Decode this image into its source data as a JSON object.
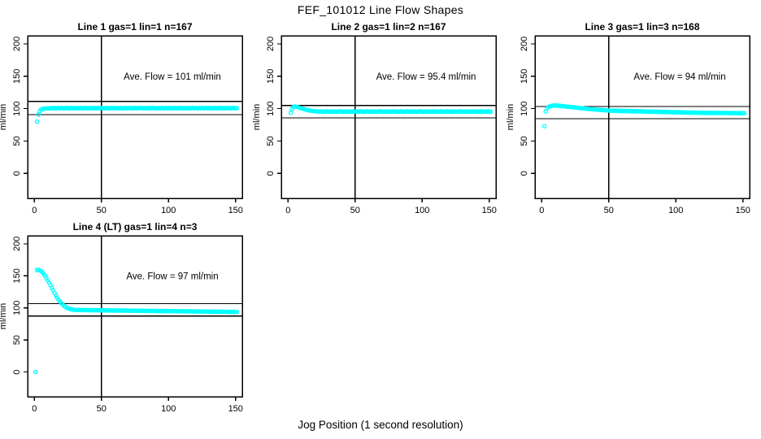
{
  "figure": {
    "title": "FEF_101012  Line Flow Shapes",
    "x_axis_label": "Jog Position (1 second resolution)",
    "y_axis_label": "ml/min",
    "point_color": "#00FFFF",
    "line_color": "#000000",
    "background_color": "#FFFFFF"
  },
  "chart_data": [
    {
      "type": "scatter",
      "title": "Line 1 gas=1 lin=1 n=167",
      "n": 167,
      "ave_flow": 101,
      "ave_flow_label": "Ave. Flow =  101  ml/min",
      "xlabel": "Jog Position (1 second resolution)",
      "ylabel": "ml/min",
      "xlim": [
        -5,
        155
      ],
      "ylim": [
        -38.5,
        212.5
      ],
      "x_ticks": [
        0,
        50,
        100,
        150
      ],
      "y_ticks": [
        0,
        50,
        100,
        150,
        200
      ],
      "vline_x": 50,
      "hlines": [
        111.1,
        90.9
      ],
      "grid": false,
      "legend": "none",
      "x_start": 2,
      "x_step": 1,
      "y": [
        80,
        91,
        96,
        98.5,
        99.5,
        100,
        100.2,
        100.4,
        100.5,
        100.6,
        100.4,
        100.9,
        100.6,
        101.1,
        100.3,
        100.8,
        101.0,
        100.5,
        100.9,
        100.7,
        100.4,
        100.9,
        100.6,
        101.1,
        100.3,
        100.8,
        101.0,
        100.5,
        100.9,
        100.7,
        100.4,
        100.9,
        100.6,
        101.1,
        100.3,
        100.8,
        101.0,
        100.5,
        100.9,
        100.7,
        100.4,
        100.9,
        100.6,
        101.1,
        100.3,
        100.8,
        101.0,
        100.5,
        100.9,
        100.7,
        100.4,
        100.9,
        100.6,
        101.1,
        100.3,
        100.8,
        101.0,
        100.5,
        100.9,
        100.7,
        100.4,
        100.9,
        100.6,
        101.1,
        100.3,
        100.8,
        101.0,
        100.5,
        100.9,
        100.7,
        100.4,
        100.9,
        100.6,
        101.1,
        100.3,
        100.8,
        101.0,
        100.5,
        100.9,
        100.7,
        100.4,
        100.9,
        100.6,
        101.1,
        100.3,
        100.8,
        101.0,
        100.5,
        100.9,
        100.7,
        100.4,
        100.9,
        100.6,
        101.1,
        100.3,
        100.8,
        101.0,
        100.5,
        100.9,
        100.7,
        100.4,
        100.9,
        100.6,
        101.1,
        100.3,
        100.8,
        101.0,
        100.5,
        100.9,
        100.7,
        100.4,
        100.9,
        100.6,
        101.1,
        100.3,
        100.8,
        101.0,
        100.5,
        100.9,
        100.7,
        100.4,
        100.9,
        100.6,
        101.1,
        100.3,
        100.8,
        101.0,
        100.5,
        100.9,
        100.7,
        100.4,
        100.9,
        100.6,
        101.1,
        100.3,
        100.8,
        101.0,
        100.5,
        100.9,
        100.7,
        100.4,
        100.9,
        100.6,
        101.1,
        100.3,
        100.8,
        101.0,
        100.5,
        100.9,
        100.7
      ]
    },
    {
      "type": "scatter",
      "title": "Line 2 gas=1 lin=2 n=167",
      "n": 167,
      "ave_flow": 95.4,
      "ave_flow_label": "Ave. Flow =  95.4  ml/min",
      "xlabel": "Jog Position (1 second resolution)",
      "ylabel": "ml/min",
      "xlim": [
        -5,
        155
      ],
      "ylim": [
        -38.5,
        212.5
      ],
      "x_ticks": [
        0,
        50,
        100,
        150
      ],
      "y_ticks": [
        0,
        50,
        100,
        150,
        200
      ],
      "vline_x": 50,
      "hlines": [
        104.9,
        85.9
      ],
      "grid": false,
      "legend": "none",
      "x_start": 2,
      "x_step": 1,
      "y": [
        93.5,
        99.5,
        102.5,
        103.3,
        103.1,
        102.5,
        101.8,
        101.1,
        100.4,
        99.8,
        99.2,
        98.6,
        98.1,
        97.6,
        97.2,
        96.8,
        96.5,
        96.2,
        96.0,
        95.9,
        95.6,
        95.2,
        95.8,
        95.4,
        95.1,
        95.7,
        95.3,
        95.9,
        95.5,
        95.2,
        95.6,
        95.2,
        95.8,
        95.4,
        95.1,
        95.7,
        95.3,
        95.9,
        95.5,
        95.2,
        95.6,
        95.2,
        95.8,
        95.4,
        95.1,
        95.7,
        95.3,
        95.9,
        95.5,
        95.2,
        95.6,
        95.2,
        95.8,
        95.4,
        95.1,
        95.7,
        95.3,
        95.9,
        95.5,
        95.2,
        95.6,
        95.2,
        95.8,
        95.4,
        95.1,
        95.7,
        95.3,
        95.9,
        95.5,
        95.2,
        95.6,
        95.2,
        95.8,
        95.4,
        95.1,
        95.7,
        95.3,
        95.9,
        95.5,
        95.2,
        95.6,
        95.2,
        95.8,
        95.4,
        95.1,
        95.7,
        95.3,
        95.9,
        95.5,
        95.2,
        95.6,
        95.2,
        95.8,
        95.4,
        95.1,
        95.7,
        95.3,
        95.9,
        95.5,
        95.2,
        95.6,
        95.2,
        95.8,
        95.4,
        95.1,
        95.7,
        95.3,
        95.9,
        95.5,
        95.2,
        95.6,
        95.2,
        95.8,
        95.4,
        95.1,
        95.7,
        95.3,
        95.9,
        95.5,
        95.2,
        95.6,
        95.2,
        95.8,
        95.4,
        95.1,
        95.7,
        95.3,
        95.9,
        95.5,
        95.2,
        95.6,
        95.2,
        95.8,
        95.4,
        95.1,
        95.7,
        95.3,
        95.9,
        95.5,
        95.2,
        95.6,
        95.2,
        95.8,
        95.4,
        95.1,
        95.7,
        95.3,
        95.9,
        95.5,
        95.2
      ]
    },
    {
      "type": "scatter",
      "title": "Line 3 gas=1 lin=3 n=168",
      "n": 168,
      "ave_flow": 94,
      "ave_flow_label": "Ave. Flow =  94  ml/min",
      "xlabel": "Jog Position (1 second resolution)",
      "ylabel": "ml/min",
      "xlim": [
        -5,
        155
      ],
      "ylim": [
        -38.5,
        212.5
      ],
      "x_ticks": [
        0,
        50,
        100,
        150
      ],
      "y_ticks": [
        0,
        50,
        100,
        150,
        200
      ],
      "vline_x": 50,
      "hlines": [
        103.4,
        84.6
      ],
      "grid": false,
      "legend": "none",
      "x_start": 2,
      "x_step": 1,
      "y": [
        73,
        95.5,
        100.5,
        102.3,
        103.4,
        104.1,
        104.6,
        104.8,
        104.9,
        104.8,
        104.6,
        104.4,
        104.2,
        104.0,
        103.8,
        103.6,
        103.3,
        103.1,
        102.9,
        102.7,
        102.4,
        102.2,
        102.0,
        101.7,
        101.5,
        101.3,
        101.0,
        100.8,
        100.6,
        100.4,
        100.2,
        100.0,
        99.8,
        99.6,
        99.4,
        99.2,
        99.0,
        98.8,
        98.7,
        98.5,
        98.3,
        98.2,
        98.0,
        97.9,
        97.7,
        97.6,
        97.4,
        97.3,
        97.2,
        97.0,
        96.9,
        96.5,
        97.1,
        96.4,
        96.9,
        96.3,
        96.8,
        96.2,
        96.7,
        96.1,
        96.6,
        96.0,
        96.5,
        95.9,
        96.4,
        95.8,
        96.3,
        95.7,
        96.2,
        95.6,
        96.1,
        95.5,
        96.0,
        95.4,
        95.9,
        95.3,
        95.8,
        95.2,
        95.7,
        95.1,
        95.6,
        95.0,
        95.5,
        94.9,
        95.4,
        94.8,
        95.3,
        94.7,
        95.2,
        94.6,
        95.1,
        94.5,
        95.0,
        94.4,
        94.9,
        94.3,
        94.8,
        94.2,
        94.7,
        94.1,
        94.6,
        94.0,
        94.5,
        93.9,
        94.4,
        93.8,
        94.3,
        93.7,
        94.2,
        93.6,
        94.1,
        93.6,
        94.0,
        93.5,
        93.9,
        93.5,
        93.8,
        93.4,
        93.8,
        93.3,
        93.7,
        93.3,
        93.6,
        93.2,
        93.6,
        93.2,
        93.5,
        93.1,
        93.5,
        93.1,
        93.6,
        93.2,
        93.5,
        93.1,
        93.5,
        93.2,
        93.4,
        93.1,
        93.4,
        93.0,
        93.3,
        93.0,
        93.3,
        92.9,
        93.2,
        92.9,
        93.2,
        92.8,
        93.1,
        92.9
      ]
    },
    {
      "type": "scatter",
      "title": "Line 4 (LT) gas=1 lin=4 n=3",
      "n": 3,
      "ave_flow": 97,
      "ave_flow_label": "Ave. Flow =  97  ml/min",
      "xlabel": "Jog Position (1 second resolution)",
      "ylabel": "ml/min",
      "xlim": [
        -5,
        155
      ],
      "ylim": [
        -38.5,
        212.5
      ],
      "x_ticks": [
        0,
        50,
        100,
        150
      ],
      "y_ticks": [
        0,
        50,
        100,
        150,
        200
      ],
      "vline_x": 50,
      "hlines": [
        106.7,
        87.3
      ],
      "grid": false,
      "legend": "none",
      "x_start": 1,
      "x_step": 1,
      "y": [
        0,
        159,
        159.5,
        158.5,
        157.5,
        155.5,
        153,
        150,
        146.5,
        143,
        139.5,
        135.5,
        131.5,
        127.5,
        123.5,
        119.5,
        116,
        112.8,
        110,
        107.5,
        105.3,
        103.4,
        101.8,
        100.5,
        99.4,
        98.6,
        98.0,
        97.5,
        97.2,
        97.0,
        96.8,
        96.9,
        96.6,
        96.8,
        96.5,
        96.8,
        96.4,
        96.7,
        96.4,
        96.7,
        96.3,
        96.6,
        96.3,
        96.6,
        96.2,
        96.5,
        96.2,
        96.5,
        96.1,
        96.4,
        96.1,
        96.4,
        96.0,
        96.3,
        96.0,
        96.3,
        95.9,
        96.2,
        95.9,
        96.2,
        95.8,
        96.1,
        95.8,
        96.1,
        95.7,
        96.0,
        95.7,
        96.0,
        95.6,
        95.9,
        95.6,
        95.9,
        95.5,
        95.8,
        95.5,
        95.8,
        95.4,
        95.7,
        95.4,
        95.7,
        95.3,
        95.6,
        95.3,
        95.6,
        95.2,
        95.5,
        95.2,
        95.5,
        95.1,
        95.4,
        95.1,
        95.4,
        95.0,
        95.3,
        95.0,
        95.3,
        94.9,
        95.2,
        94.9,
        95.2,
        94.8,
        95.1,
        94.8,
        95.1,
        94.7,
        95.0,
        94.7,
        95.0,
        94.6,
        94.9,
        94.6,
        94.9,
        94.5,
        94.8,
        94.5,
        94.8,
        94.4,
        94.7,
        94.4,
        94.7,
        94.3,
        94.6,
        94.3,
        94.6,
        94.2,
        94.5,
        94.2,
        94.5,
        94.1,
        94.4,
        94.1,
        94.4,
        94.0,
        94.3,
        94.0,
        94.3,
        93.9,
        94.2,
        93.9,
        94.2,
        93.8,
        94.1,
        93.8,
        94.1,
        93.7,
        94.0,
        93.7,
        94.0,
        93.6,
        93.9,
        93.7
      ]
    }
  ]
}
